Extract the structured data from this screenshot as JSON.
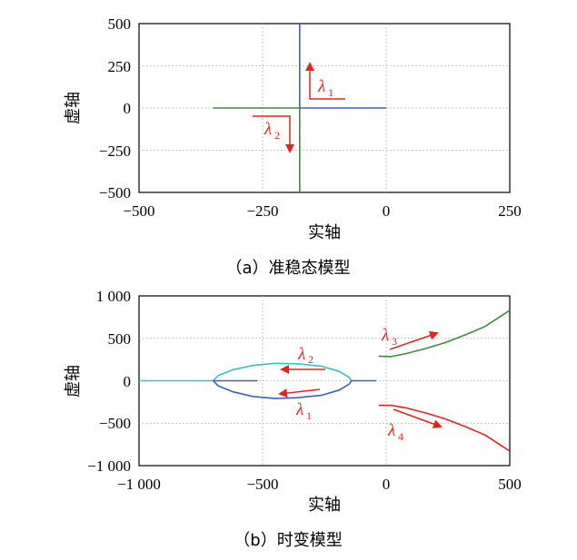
{
  "chart_data": [
    {
      "type": "line",
      "caption": "（a）准稳态模型",
      "xlabel": "实轴",
      "ylabel": "虚轴",
      "xlim": [
        -500,
        250
      ],
      "ylim": [
        -500,
        500
      ],
      "xticks": [
        "−500",
        "−250",
        "0",
        "250"
      ],
      "yticks": [
        "500",
        "250",
        "0",
        "−250",
        "−500"
      ],
      "grid": true,
      "series": [
        {
          "color": "#3a5fcd",
          "points": [
            [
              -175,
              500
            ],
            [
              -175,
              0
            ],
            [
              0,
              0
            ]
          ]
        },
        {
          "color": "#3c8c3c",
          "points": [
            [
              -350,
              0
            ],
            [
              -175,
              0
            ],
            [
              -175,
              -500
            ]
          ]
        }
      ],
      "annotations": [
        {
          "label": "λ",
          "sub": "1",
          "color": "#e8231f"
        },
        {
          "label": "λ",
          "sub": "2",
          "color": "#e8231f"
        }
      ]
    },
    {
      "type": "line",
      "caption": "（b）时变模型",
      "xlabel": "实轴",
      "ylabel": "虚轴",
      "xlim": [
        -1000,
        500
      ],
      "ylim": [
        -1000,
        1000
      ],
      "xticks": [
        "−1 000",
        "−500",
        "0",
        "500"
      ],
      "yticks": [
        "1 000",
        "500",
        "0",
        "−500",
        "−1 000"
      ],
      "grid": true,
      "series": [
        {
          "color": "#3fbfbf",
          "points": [
            [
              -1000,
              0
            ],
            [
              -700,
              0
            ],
            [
              -680,
              60
            ],
            [
              -620,
              130
            ],
            [
              -540,
              180
            ],
            [
              -450,
              205
            ],
            [
              -360,
              200
            ],
            [
              -260,
              170
            ],
            [
              -190,
              110
            ],
            [
              -150,
              40
            ],
            [
              -140,
              0
            ]
          ]
        },
        {
          "color": "#3a5fcd",
          "points": [
            [
              -520,
              0
            ],
            [
              -560,
              0
            ],
            [
              -620,
              0
            ],
            [
              -700,
              0
            ],
            [
              -680,
              -60
            ],
            [
              -620,
              -130
            ],
            [
              -540,
              -185
            ],
            [
              -450,
              -210
            ],
            [
              -360,
              -200
            ],
            [
              -260,
              -170
            ],
            [
              -190,
              -110
            ],
            [
              -150,
              -40
            ],
            [
              -140,
              0
            ],
            [
              -40,
              0
            ]
          ]
        },
        {
          "color": "#3c8c3c",
          "points": [
            [
              -30,
              290
            ],
            [
              20,
              285
            ],
            [
              80,
              320
            ],
            [
              160,
              380
            ],
            [
              240,
              450
            ],
            [
              320,
              540
            ],
            [
              400,
              640
            ],
            [
              500,
              830
            ]
          ]
        },
        {
          "color": "#e8231f",
          "points": [
            [
              -30,
              -290
            ],
            [
              20,
              -290
            ],
            [
              80,
              -320
            ],
            [
              160,
              -380
            ],
            [
              240,
              -450
            ],
            [
              320,
              -540
            ],
            [
              400,
              -640
            ],
            [
              500,
              -830
            ]
          ]
        }
      ],
      "annotations": [
        {
          "label": "λ",
          "sub": "2",
          "color": "#e8231f"
        },
        {
          "label": "λ",
          "sub": "1",
          "color": "#e8231f"
        },
        {
          "label": "λ",
          "sub": "3",
          "color": "#e8231f"
        },
        {
          "label": "λ",
          "sub": "4",
          "color": "#e8231f"
        }
      ]
    }
  ]
}
